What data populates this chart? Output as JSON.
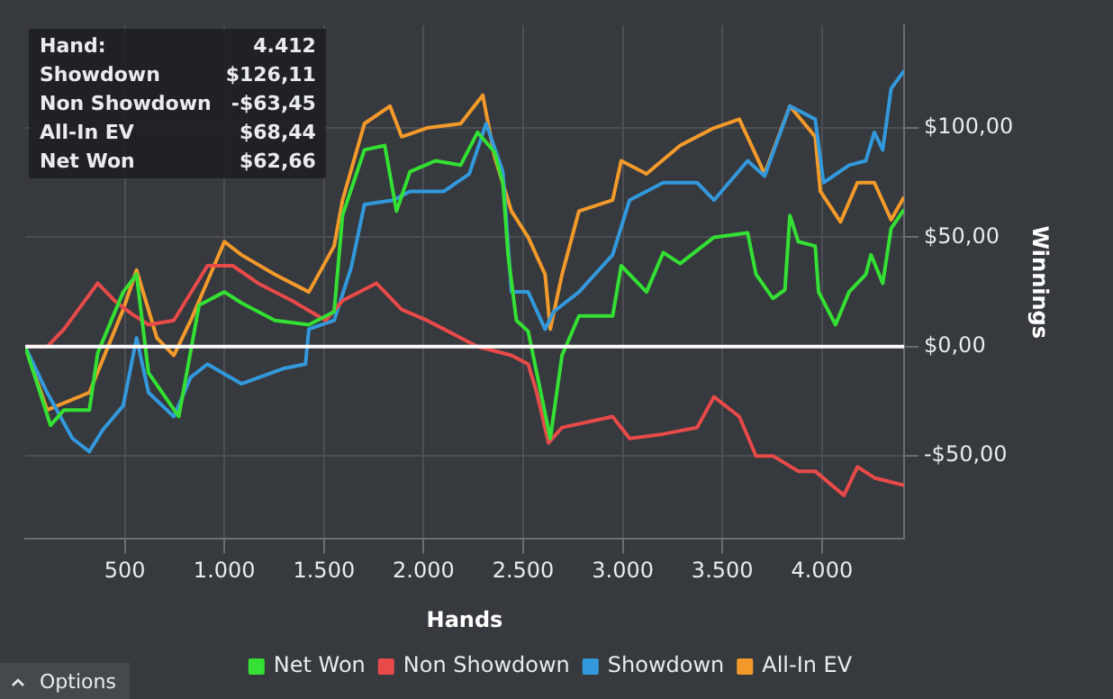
{
  "chart_data": {
    "type": "line",
    "xlabel": "Hands",
    "ylabel": "Winnings",
    "xlim": [
      0,
      4412
    ],
    "xticks": [
      {
        "value": 500,
        "label": "500"
      },
      {
        "value": 1000,
        "label": "1.000"
      },
      {
        "value": 1500,
        "label": "1.500"
      },
      {
        "value": 2000,
        "label": "2.000"
      },
      {
        "value": 2500,
        "label": "2.500"
      },
      {
        "value": 3000,
        "label": "3.000"
      },
      {
        "value": 3500,
        "label": "3.500"
      },
      {
        "value": 4000,
        "label": "4.000"
      }
    ],
    "ylim": [
      -88,
      147
    ],
    "yticks": [
      {
        "value": -50,
        "label": "-$50,00"
      },
      {
        "value": 0,
        "label": "$0,00"
      },
      {
        "value": 50,
        "label": "$50,00"
      },
      {
        "value": 100,
        "label": "$100,00"
      }
    ],
    "grid": true,
    "legend": "bottom",
    "marker": "none",
    "line_style": "solid",
    "ref_lines": [
      {
        "axis": "y",
        "value": 0,
        "color": "#ffffff"
      }
    ],
    "annotations": [
      "Hand:",
      "4.412",
      "Showdown",
      "$126,11",
      "Non Showdown",
      "-$63,45",
      "All-In EV",
      "$68,44",
      "Net Won",
      "$62,66",
      "Options"
    ],
    "series": [
      {
        "name": "Net Won",
        "color": "#33e033",
        "x": [
          0,
          127,
          195,
          322,
          364,
          492,
          559,
          619,
          771,
          873,
          1000,
          1085,
          1254,
          1424,
          1551,
          1593,
          1703,
          1805,
          1864,
          1932,
          2059,
          2186,
          2271,
          2356,
          2398,
          2424,
          2466,
          2525,
          2636,
          2695,
          2780,
          2949,
          2992,
          3119,
          3203,
          3288,
          3458,
          3627,
          3669,
          3754,
          3814,
          3839,
          3881,
          3966,
          3983,
          4068,
          4136,
          4220,
          4246,
          4305,
          4347,
          4412
        ],
        "values": [
          0,
          -36,
          -29,
          -29,
          -3,
          25,
          33,
          -12,
          -32,
          19,
          25,
          20,
          12,
          10,
          16,
          60,
          90,
          92,
          62,
          80,
          85,
          83,
          98,
          89,
          75,
          42,
          12,
          7,
          -42,
          -4,
          14,
          14,
          37,
          25,
          43,
          38,
          50,
          52,
          33,
          22,
          26,
          60,
          48,
          46,
          25,
          10,
          25,
          33,
          42,
          29,
          54,
          62.66
        ]
      },
      {
        "name": "Non Showdown",
        "color": "#e84a4a",
        "x": [
          0,
          110,
          195,
          364,
          449,
          534,
          619,
          746,
          915,
          1042,
          1169,
          1339,
          1508,
          1593,
          1763,
          1890,
          2017,
          2102,
          2271,
          2441,
          2525,
          2568,
          2627,
          2695,
          2949,
          3034,
          3203,
          3373,
          3458,
          3585,
          3669,
          3754,
          3881,
          3966,
          4110,
          4178,
          4263,
          4412
        ],
        "values": [
          0,
          0,
          8,
          29,
          21,
          15,
          10,
          12,
          37,
          37,
          29,
          21,
          12,
          21,
          29,
          17,
          12,
          8,
          0,
          -4,
          -8,
          -21,
          -44,
          -37,
          -32,
          -42,
          -40,
          -37,
          -23,
          -32,
          -50,
          -50,
          -57,
          -57,
          -68,
          -55,
          -60,
          -63.45
        ]
      },
      {
        "name": "Showdown",
        "color": "#3399dd",
        "x": [
          0,
          110,
          237,
          322,
          390,
          492,
          559,
          619,
          746,
          831,
          915,
          1085,
          1297,
          1407,
          1424,
          1551,
          1636,
          1703,
          1847,
          1932,
          2102,
          2229,
          2314,
          2398,
          2441,
          2525,
          2610,
          2653,
          2780,
          2949,
          3034,
          3203,
          3373,
          3458,
          3627,
          3712,
          3839,
          3966,
          4008,
          4136,
          4220,
          4263,
          4305,
          4347,
          4412
        ],
        "values": [
          0,
          -21,
          -42,
          -48,
          -38,
          -27,
          4,
          -21,
          -32,
          -14,
          -8,
          -17,
          -10,
          -8,
          8,
          12,
          36,
          65,
          67,
          71,
          71,
          79,
          102,
          80,
          25,
          25,
          8,
          16,
          25,
          42,
          67,
          75,
          75,
          67,
          85,
          78,
          110,
          104,
          75,
          83,
          85,
          98,
          90,
          118,
          126.11
        ]
      },
      {
        "name": "All-In EV",
        "color": "#f39a2b",
        "x": [
          0,
          110,
          322,
          492,
          559,
          661,
          746,
          831,
          1000,
          1085,
          1254,
          1424,
          1551,
          1593,
          1703,
          1831,
          1890,
          2017,
          2186,
          2297,
          2356,
          2441,
          2525,
          2610,
          2636,
          2695,
          2780,
          2949,
          2992,
          3119,
          3288,
          3458,
          3585,
          3712,
          3839,
          3966,
          3992,
          4093,
          4178,
          4263,
          4347,
          4412
        ],
        "values": [
          0,
          -29,
          -21,
          17,
          35,
          4,
          -4,
          12,
          48,
          42,
          33,
          25,
          46,
          67,
          102,
          110,
          96,
          100,
          102,
          115,
          87,
          62,
          50,
          33,
          8,
          33,
          62,
          67,
          85,
          79,
          92,
          100,
          104,
          79,
          110,
          96,
          71,
          57,
          75,
          75,
          58,
          68.44
        ]
      }
    ]
  }
}
